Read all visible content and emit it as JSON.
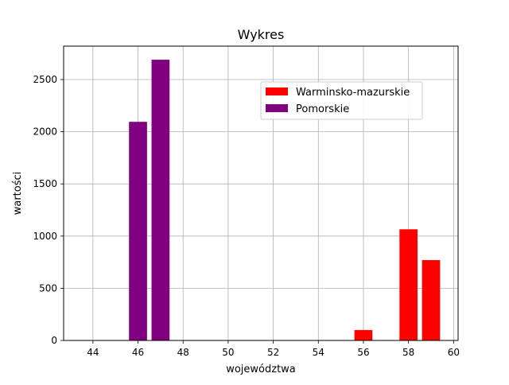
{
  "chart_data": {
    "type": "bar",
    "title": "Wykres",
    "xlabel": "województwa",
    "ylabel": "wartości",
    "xlim": [
      42.7,
      60.2
    ],
    "ylim": [
      0,
      2820
    ],
    "x_ticks": [
      44,
      46,
      48,
      50,
      52,
      54,
      56,
      58,
      60
    ],
    "y_ticks": [
      0,
      500,
      1000,
      1500,
      2000,
      2500
    ],
    "grid": true,
    "legend_position": "upper-right",
    "bar_width": 0.8,
    "series": [
      {
        "name": "Warminsko-mazurskie",
        "color": "#ff0000",
        "x": [
          56,
          58,
          59
        ],
        "values": [
          100,
          1065,
          770
        ]
      },
      {
        "name": "Pomorskie",
        "color": "#800080",
        "x": [
          46,
          47
        ],
        "values": [
          2095,
          2690
        ]
      }
    ]
  }
}
